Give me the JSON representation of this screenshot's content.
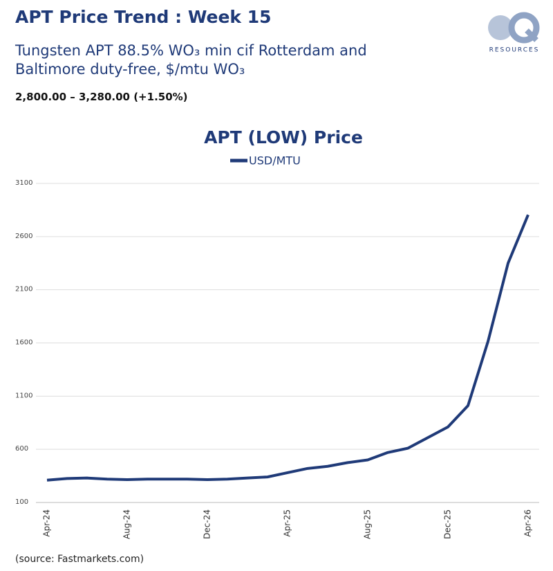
{
  "header": {
    "title": "APT Price Trend : Week 15",
    "subtitle": "Tungsten APT 88.5% WO₃ min cif Rotterdam and Baltimore duty-free, $/mtu WO₃",
    "range": "2,800.00 – 3,280.00 (+1.50%)"
  },
  "logo": {
    "text": "RESOURCES"
  },
  "source": "(source: Fastmarkets.com)",
  "chart_data": {
    "type": "line",
    "title": "APT (LOW) Price",
    "categories": [
      "Apr-24",
      null,
      null,
      null,
      "Aug-24",
      null,
      null,
      null,
      "Dec-24",
      null,
      null,
      null,
      "Apr-25",
      null,
      null,
      null,
      "Aug-25",
      null,
      null,
      null,
      "Dec-25",
      null,
      null,
      null,
      "Apr-26"
    ],
    "series": [
      {
        "name": "USD/MTU",
        "color": "#1f3a78",
        "values": [
          310,
          325,
          330,
          320,
          315,
          320,
          320,
          320,
          315,
          320,
          330,
          340,
          380,
          420,
          440,
          475,
          500,
          570,
          610,
          710,
          810,
          1010,
          1615,
          2350,
          2805
        ]
      }
    ],
    "ylim": [
      100,
      3100
    ],
    "yticks": [
      100,
      600,
      1100,
      1600,
      2100,
      2600,
      3100
    ],
    "grid": true,
    "legend": "top"
  }
}
